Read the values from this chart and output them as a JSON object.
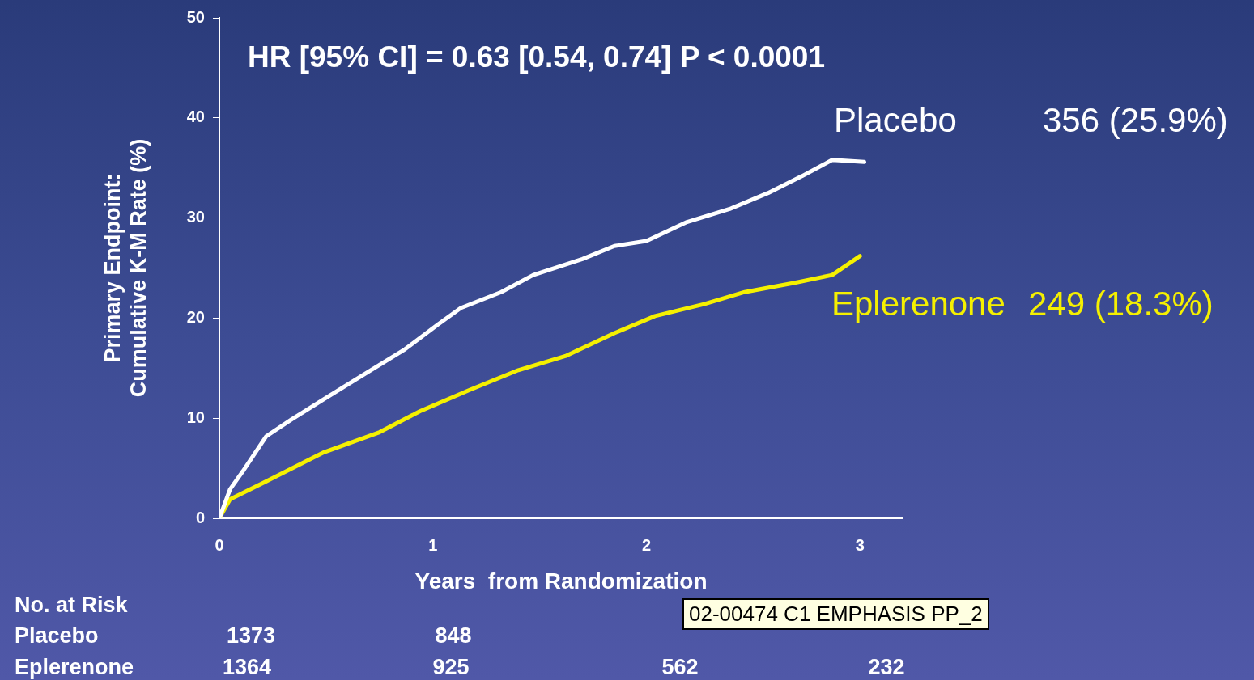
{
  "chart_data": {
    "type": "line",
    "xlabel": "Years  from Randomization",
    "ylabel": "Primary Endpoint:\nCumulative K-M Rate (%)",
    "xlim": [
      0,
      3.2
    ],
    "xticks": [
      0,
      1,
      2,
      3
    ],
    "ylim": [
      0,
      50
    ],
    "yticks": [
      0,
      10,
      20,
      30,
      40,
      50
    ],
    "grid": false,
    "legend": false,
    "marker": "none",
    "line_style": "solid",
    "series": [
      {
        "name": "Placebo",
        "color": "#ffffff",
        "x": [
          0,
          0.05,
          0.11,
          0.22,
          0.34,
          0.49,
          0.68,
          0.87,
          1.02,
          1.13,
          1.32,
          1.47,
          1.7,
          1.85,
          2.0,
          2.19,
          2.39,
          2.57,
          2.73,
          2.87,
          3.02
        ],
        "values": [
          0,
          2.9,
          4.7,
          8.2,
          9.9,
          11.9,
          14.4,
          16.9,
          19.3,
          21,
          22.6,
          24.3,
          25.9,
          27.2,
          27.7,
          29.6,
          30.9,
          32.5,
          34.2,
          35.8,
          35.6
        ]
      },
      {
        "name": "Eplerenone",
        "color": "#f5f000",
        "x": [
          0,
          0.05,
          0.22,
          0.49,
          0.75,
          0.94,
          1.17,
          1.4,
          1.62,
          1.85,
          2.04,
          2.27,
          2.46,
          2.69,
          2.87,
          3.0
        ],
        "values": [
          0,
          1.9,
          3.7,
          6.6,
          8.6,
          10.7,
          12.8,
          14.8,
          16.2,
          18.5,
          20.2,
          21.4,
          22.6,
          23.5,
          24.3,
          26.2
        ]
      }
    ],
    "annotations": [
      "HR [95% CI] = 0.63 [0.54, 0.74] P < 0.0001",
      "356 (25.9%)",
      "249 (18.3%)",
      "No. at Risk",
      "Placebo",
      "1373",
      "848",
      "Eplerenone",
      "1364",
      "925",
      "562",
      "232",
      "02-00474 C1 EMPHASIS PP_2"
    ]
  }
}
